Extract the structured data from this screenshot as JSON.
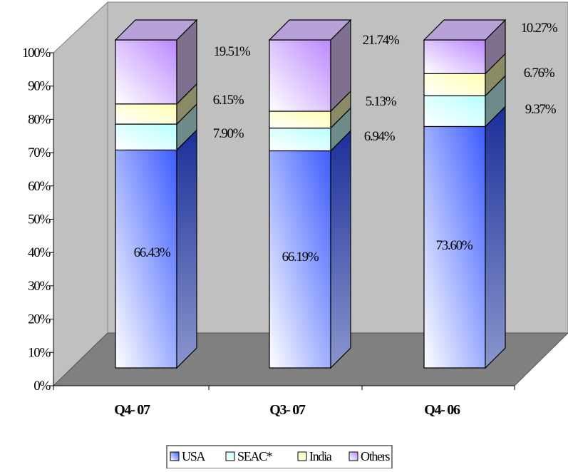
{
  "chart_data": {
    "type": "bar",
    "stacked": true,
    "percent_stacked": true,
    "three_d": true,
    "categories": [
      "Q4- 07",
      "Q3- 07",
      "Q4- 06"
    ],
    "series": [
      {
        "name": "USA",
        "values": [
          66.43,
          66.19,
          73.6
        ],
        "labels": [
          "66.43%",
          "66.19%",
          "73.60%"
        ]
      },
      {
        "name": "SEAC*",
        "values": [
          7.9,
          6.94,
          9.37
        ],
        "labels": [
          "7.90%",
          "6.94%",
          "9.37%"
        ]
      },
      {
        "name": "India",
        "values": [
          6.15,
          5.13,
          6.76
        ],
        "labels": [
          "6.15%",
          "5.13%",
          "6.76%"
        ]
      },
      {
        "name": "Others",
        "values": [
          19.51,
          21.74,
          10.27
        ],
        "labels": [
          "19.51%",
          "21.74%",
          "10.27%"
        ]
      }
    ],
    "yticks": [
      "0%",
      "10%",
      "20%",
      "30%",
      "40%",
      "50%",
      "60%",
      "70%",
      "80%",
      "90%",
      "100%"
    ],
    "ylim": [
      0,
      100
    ],
    "grid": false,
    "legend_position": "bottom",
    "colors": {
      "USA": "#3d5cff",
      "SEAC*": "#ccffff",
      "India": "#ffffcc",
      "Others": "#cc99ff",
      "back_wall": "#c0c0c0",
      "floor": "#808080"
    }
  }
}
